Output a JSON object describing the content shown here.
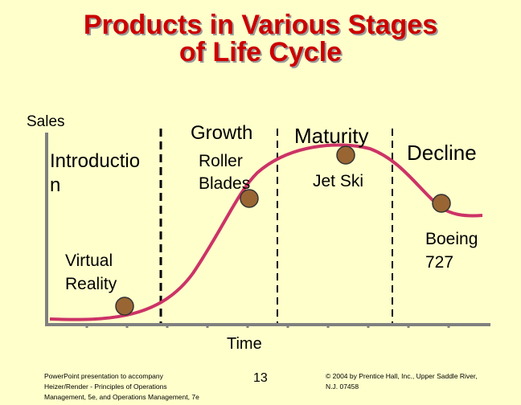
{
  "title": {
    "line1": "Products in Various Stages",
    "line2": "of Life Cycle"
  },
  "axis": {
    "y_label": "Sales",
    "x_label": "Time"
  },
  "stages": {
    "introduction_line1": "Introductio",
    "introduction_line2": "n",
    "growth": "Growth",
    "maturity": "Maturity",
    "decline": "Decline"
  },
  "products": {
    "virtual_reality_line1": "Virtual",
    "virtual_reality_line2": "Reality",
    "roller_blades_line1": "Roller",
    "roller_blades_line2": "Blades",
    "jet_ski": "Jet Ski",
    "boeing_line1": "Boeing",
    "boeing_line2": "727"
  },
  "footer": {
    "left_line1": "PowerPoint presentation to accompany",
    "left_line2": "Heizer/Render - Principles of Operations",
    "left_line3": "Management, 5e, and Operations Management, 7e",
    "page_number": "13",
    "right_line1": "© 2004 by Prentice Hall, Inc., Upper Saddle River,",
    "right_line2": "N.J. 07458"
  },
  "colors": {
    "title": "#CC0000",
    "background": "#FFFFCC",
    "curve": "#CC3366",
    "marker": "#996633"
  }
}
